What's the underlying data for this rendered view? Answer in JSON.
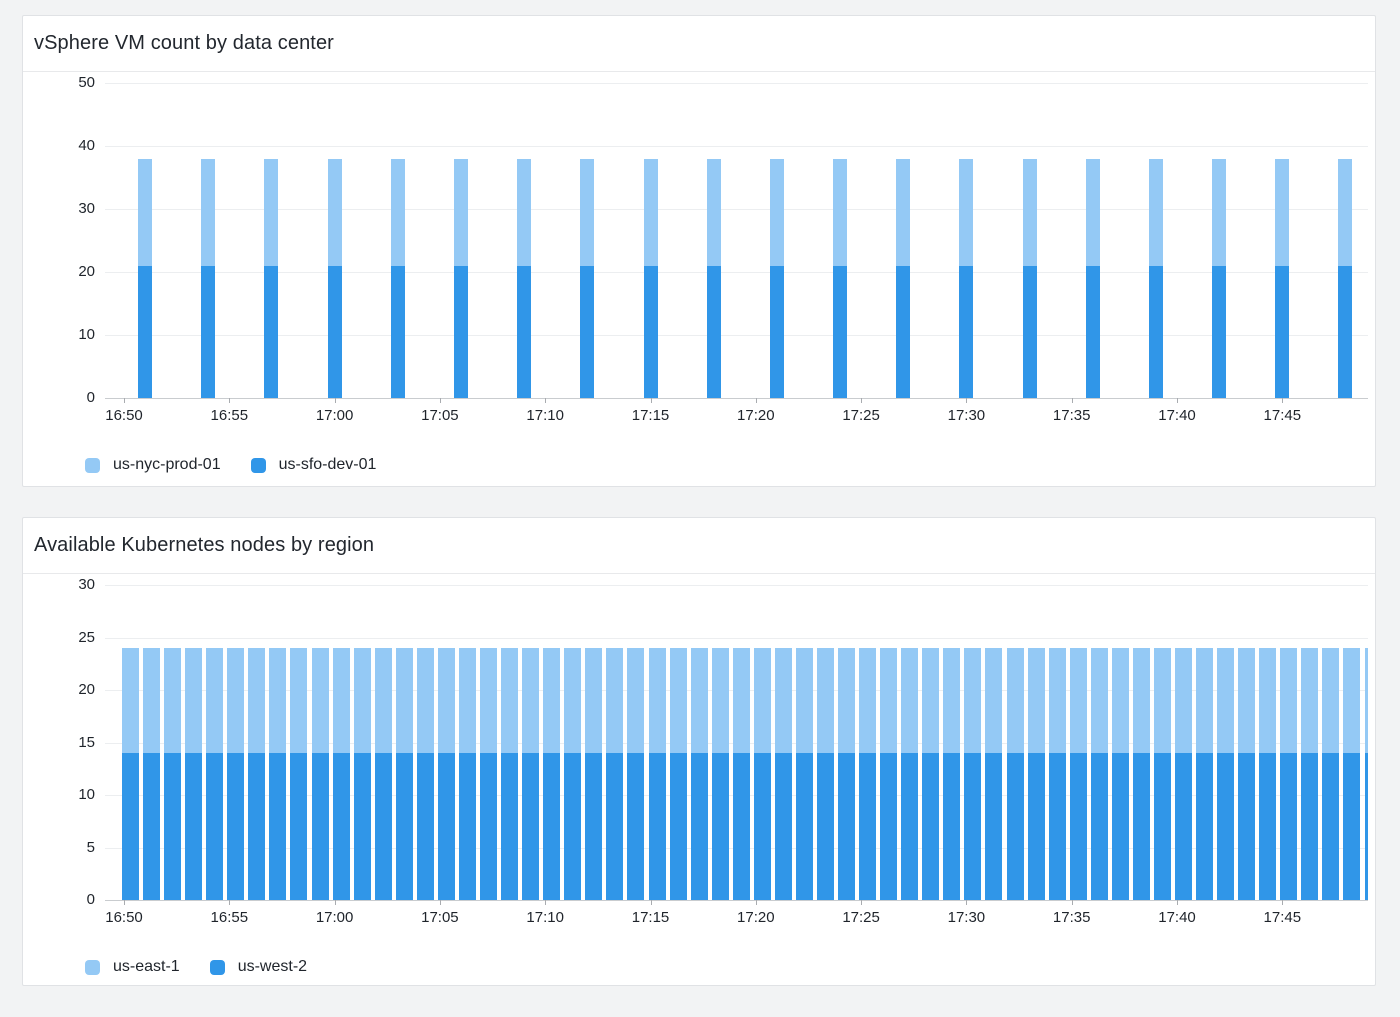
{
  "theme": {
    "page_bg": "#f2f3f4",
    "panel_bg": "#ffffff",
    "panel_border": "#e0e2e5",
    "gridline": "#eceef0",
    "axis_line": "#c9cccf",
    "text": "#1f242b",
    "title_text": "#22272e",
    "series_light_blue": "#94c9f5",
    "series_dark_blue": "#3096e8"
  },
  "chart_data": [
    {
      "type": "bar",
      "stacked": true,
      "title": "vSphere VM count by data center",
      "ylim": [
        0,
        50
      ],
      "y_ticks": [
        0,
        10,
        20,
        30,
        40,
        50
      ],
      "grid": "horizontal",
      "legend_position": "bottom-left",
      "legend": [
        "us-nyc-prod-01",
        "us-sfo-dev-01"
      ],
      "x_tick_labels": [
        "16:50",
        "16:55",
        "17:00",
        "17:05",
        "17:10",
        "17:15",
        "17:20",
        "17:25",
        "17:30",
        "17:35",
        "17:40",
        "17:45"
      ],
      "x": [
        "16:51",
        "16:54",
        "16:57",
        "17:00",
        "17:03",
        "17:06",
        "17:09",
        "17:12",
        "17:15",
        "17:18",
        "17:21",
        "17:24",
        "17:27",
        "17:30",
        "17:33",
        "17:36",
        "17:39",
        "17:42",
        "17:45",
        "17:48"
      ],
      "series": [
        {
          "name": "us-sfo-dev-01",
          "color": "#3096e8",
          "stack_order": "bottom",
          "values": [
            21,
            21,
            21,
            21,
            21,
            21,
            21,
            21,
            21,
            21,
            21,
            21,
            21,
            21,
            21,
            21,
            21,
            21,
            21,
            21
          ]
        },
        {
          "name": "us-nyc-prod-01",
          "color": "#94c9f5",
          "stack_order": "top",
          "values": [
            17,
            17,
            17,
            17,
            17,
            17,
            17,
            17,
            17,
            17,
            17,
            17,
            17,
            17,
            17,
            17,
            17,
            17,
            17,
            17
          ]
        }
      ]
    },
    {
      "type": "bar",
      "stacked": true,
      "title": "Available Kubernetes nodes by region",
      "ylim": [
        0,
        30
      ],
      "y_ticks": [
        0,
        5,
        10,
        15,
        20,
        25,
        30
      ],
      "grid": "horizontal",
      "legend_position": "bottom-left",
      "legend": [
        "us-east-1",
        "us-west-2"
      ],
      "x_tick_labels": [
        "16:50",
        "16:55",
        "17:00",
        "17:05",
        "17:10",
        "17:15",
        "17:20",
        "17:25",
        "17:30",
        "17:35",
        "17:40",
        "17:45"
      ],
      "x": [
        "16:50",
        "16:51",
        "16:52",
        "16:53",
        "16:54",
        "16:55",
        "16:56",
        "16:57",
        "16:58",
        "16:59",
        "17:00",
        "17:01",
        "17:02",
        "17:03",
        "17:04",
        "17:05",
        "17:06",
        "17:07",
        "17:08",
        "17:09",
        "17:10",
        "17:11",
        "17:12",
        "17:13",
        "17:14",
        "17:15",
        "17:16",
        "17:17",
        "17:18",
        "17:19",
        "17:20",
        "17:21",
        "17:22",
        "17:23",
        "17:24",
        "17:25",
        "17:26",
        "17:27",
        "17:28",
        "17:29",
        "17:30",
        "17:31",
        "17:32",
        "17:33",
        "17:34",
        "17:35",
        "17:36",
        "17:37",
        "17:38",
        "17:39",
        "17:40",
        "17:41",
        "17:42",
        "17:43",
        "17:44",
        "17:45",
        "17:46",
        "17:47",
        "17:48",
        "17:49"
      ],
      "series": [
        {
          "name": "us-west-2",
          "color": "#3096e8",
          "stack_order": "bottom",
          "values": [
            14,
            14,
            14,
            14,
            14,
            14,
            14,
            14,
            14,
            14,
            14,
            14,
            14,
            14,
            14,
            14,
            14,
            14,
            14,
            14,
            14,
            14,
            14,
            14,
            14,
            14,
            14,
            14,
            14,
            14,
            14,
            14,
            14,
            14,
            14,
            14,
            14,
            14,
            14,
            14,
            14,
            14,
            14,
            14,
            14,
            14,
            14,
            14,
            14,
            14,
            14,
            14,
            14,
            14,
            14,
            14,
            14,
            14,
            14,
            14
          ]
        },
        {
          "name": "us-east-1",
          "color": "#94c9f5",
          "stack_order": "top",
          "values": [
            10,
            10,
            10,
            10,
            10,
            10,
            10,
            10,
            10,
            10,
            10,
            10,
            10,
            10,
            10,
            10,
            10,
            10,
            10,
            10,
            10,
            10,
            10,
            10,
            10,
            10,
            10,
            10,
            10,
            10,
            10,
            10,
            10,
            10,
            10,
            10,
            10,
            10,
            10,
            10,
            10,
            10,
            10,
            10,
            10,
            10,
            10,
            10,
            10,
            10,
            10,
            10,
            10,
            10,
            10,
            10,
            10,
            10,
            10,
            10
          ]
        }
      ]
    }
  ]
}
